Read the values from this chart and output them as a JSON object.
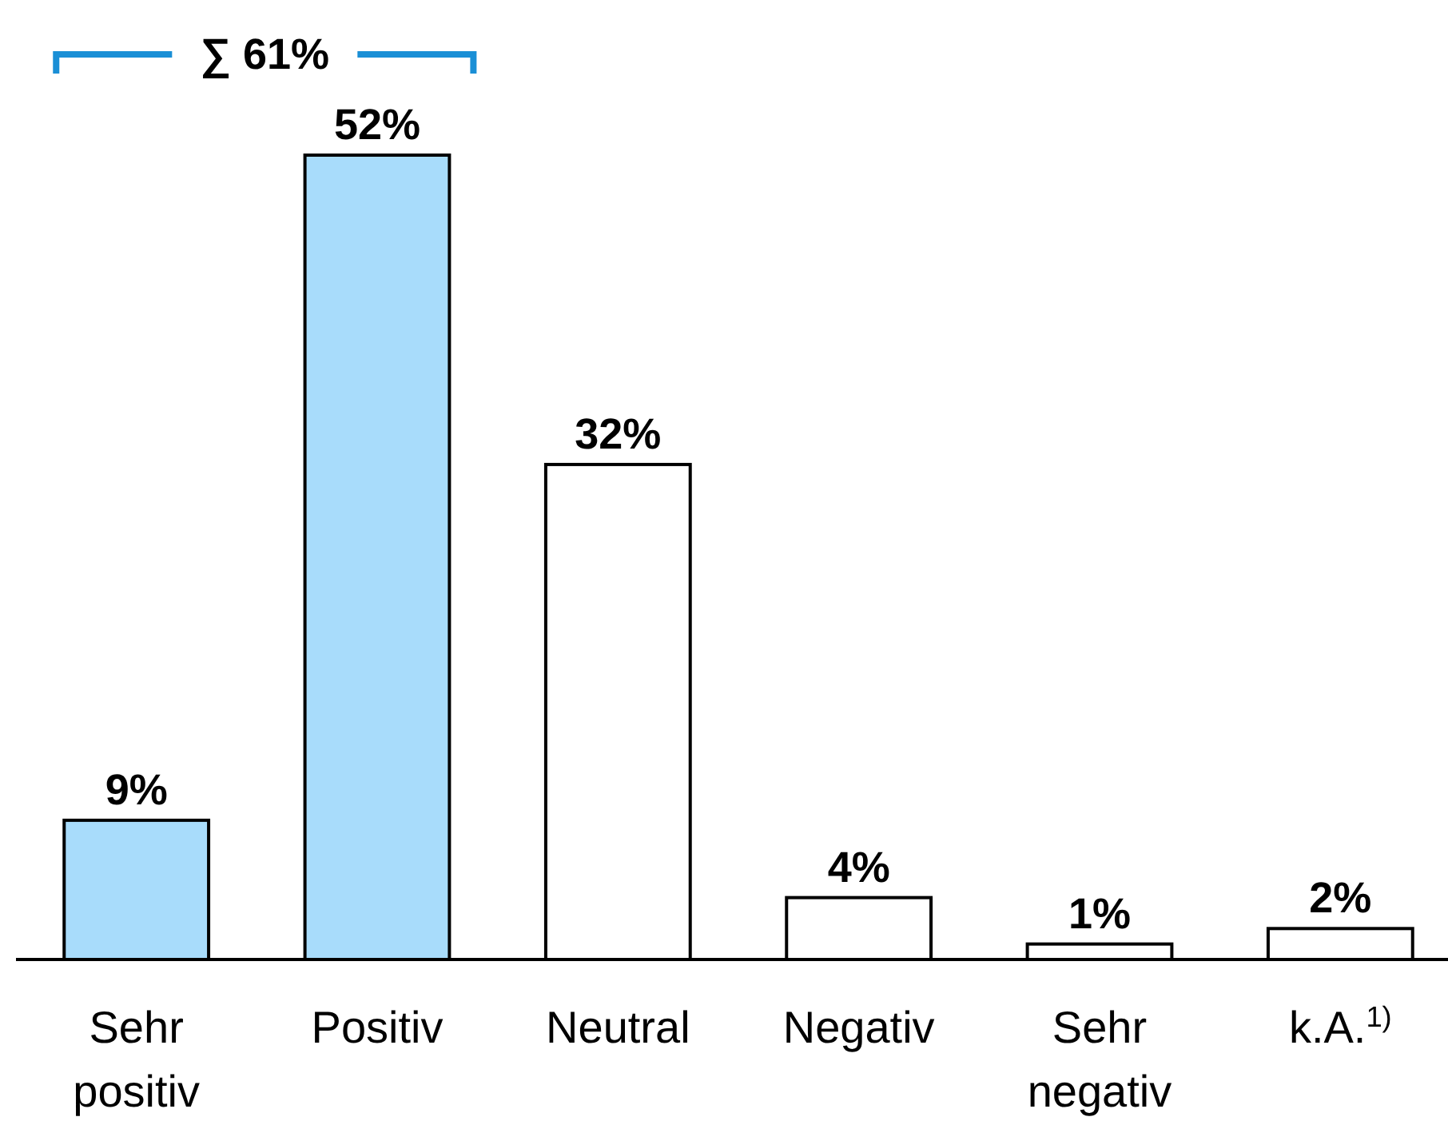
{
  "chart_data": {
    "type": "bar",
    "categories": [
      "Sehr positiv",
      "Positiv",
      "Neutral",
      "Negativ",
      "Sehr negativ",
      "k.A.$^{1)}$"
    ],
    "values": [
      9,
      52,
      32,
      4,
      1,
      2
    ],
    "value_labels": [
      "9%",
      "52%",
      "32%",
      "4%",
      "1%",
      "2%"
    ],
    "colors": [
      "#a8dcfb",
      "#a8dcfb",
      "#ffffff",
      "#ffffff",
      "#ffffff",
      "#ffffff"
    ],
    "annotations": [
      "∑ 61%"
    ]
  }
}
